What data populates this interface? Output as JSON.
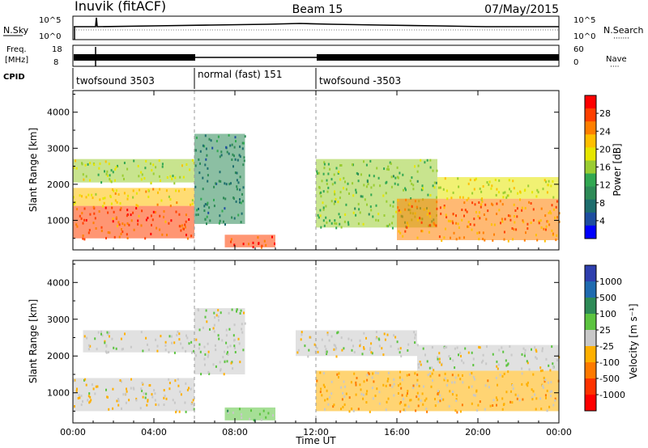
{
  "header": {
    "station": "Inuvik (fitACF)",
    "beam": "Beam 15",
    "date": "07/May/2015"
  },
  "nsky_panel": {
    "left_label": "N.Sky",
    "right_label": "N.Search",
    "right_dots": "·······",
    "left_ticks": [
      "10^5",
      "10^0"
    ],
    "right_ticks": [
      "10^5",
      "10^0"
    ]
  },
  "freq_panel": {
    "left_label_1": "Freq.",
    "left_label_2": "[MHz]",
    "right_label": "Nave",
    "right_dots": "····",
    "left_ticks": [
      "18",
      "8"
    ],
    "right_ticks": [
      "60",
      "0"
    ]
  },
  "cpid_panel": {
    "label": "CPID",
    "segments": [
      {
        "name": "twofsound 3503",
        "start_h": 0,
        "end_h": 6
      },
      {
        "name": "normal (fast) 151",
        "start_h": 6,
        "end_h": 12
      },
      {
        "name": "twofsound -3503",
        "start_h": 12,
        "end_h": 24
      }
    ]
  },
  "power_panel": {
    "ylabel": "Slant Range [km]",
    "colorbar_label": "Power [dB]",
    "colorbar_ticks": [
      "28",
      "24",
      "20",
      "16",
      "12",
      "8",
      "4"
    ],
    "colorbar_colors": [
      "#ff0000",
      "#ff4000",
      "#ff7f00",
      "#ffbf00",
      "#e6e600",
      "#9acd32",
      "#32a852",
      "#2e8b57",
      "#1e6e6e",
      "#1e4ea0",
      "#0000ff"
    ]
  },
  "velocity_panel": {
    "ylabel": "Slant Range [km]",
    "colorbar_label": "Velocity [m s⁻¹]",
    "colorbar_ticks": [
      "1000",
      "500",
      "100",
      "25",
      "-25",
      "-100",
      "-500",
      "-1000"
    ],
    "colorbar_colors": [
      "#2e3fae",
      "#1f6bb0",
      "#2e8b57",
      "#5cc440",
      "#c8c8c8",
      "#ffb000",
      "#ff7a00",
      "#ff3300",
      "#ff0000"
    ]
  },
  "x_axis": {
    "label": "Time UT",
    "ticks": [
      "00:00",
      "04:00",
      "08:00",
      "12:00",
      "16:00",
      "20:00",
      "00:00"
    ]
  },
  "y_axis": {
    "ticks": [
      "1000",
      "2000",
      "3000",
      "4000"
    ]
  },
  "chart_data": [
    {
      "type": "heatmap",
      "title": "Beam 15",
      "xlabel": "Time UT",
      "ylabel": "Slant Range [km]",
      "xlim": [
        0,
        24
      ],
      "ylim": [
        180,
        4600
      ],
      "colorbar": "Power [dB]",
      "clim": [
        0,
        30
      ],
      "regions": [
        {
          "t0": 0.0,
          "t1": 6.0,
          "r0": 500,
          "r1": 1400,
          "value": 26
        },
        {
          "t0": 0.0,
          "t1": 6.0,
          "r0": 1400,
          "r1": 1900,
          "value": 20
        },
        {
          "t0": 0.0,
          "t1": 6.0,
          "r0": 2050,
          "r1": 2700,
          "value": 16
        },
        {
          "t0": 6.0,
          "t1": 8.5,
          "r0": 900,
          "r1": 3400,
          "value": 8
        },
        {
          "t0": 7.5,
          "t1": 10.0,
          "r0": 250,
          "r1": 600,
          "value": 27
        },
        {
          "t0": 12.0,
          "t1": 18.0,
          "r0": 800,
          "r1": 2700,
          "value": 14
        },
        {
          "t0": 16.0,
          "t1": 24.0,
          "r0": 450,
          "r1": 1600,
          "value": 24
        },
        {
          "t0": 18.0,
          "t1": 24.0,
          "r0": 1600,
          "r1": 2200,
          "value": 18
        }
      ]
    },
    {
      "type": "heatmap",
      "title": "Beam 15",
      "xlabel": "Time UT",
      "ylabel": "Slant Range [km]",
      "xlim": [
        0,
        24
      ],
      "ylim": [
        180,
        4600
      ],
      "colorbar": "Velocity [m s⁻¹]",
      "clim": [
        -1000,
        1000
      ],
      "regions": [
        {
          "t0": 0.0,
          "t1": 6.0,
          "r0": 500,
          "r1": 1400,
          "value": -100
        },
        {
          "t0": 0.5,
          "t1": 6.0,
          "r0": 2100,
          "r1": 2700,
          "value": 0
        },
        {
          "t0": 6.0,
          "t1": 8.5,
          "r0": 1500,
          "r1": 3300,
          "value": 50
        },
        {
          "t0": 7.5,
          "t1": 10.0,
          "r0": 250,
          "r1": 600,
          "value": 200
        },
        {
          "t0": 11.0,
          "t1": 17.0,
          "r0": 2000,
          "r1": 2700,
          "value": 0
        },
        {
          "t0": 12.0,
          "t1": 24.0,
          "r0": 500,
          "r1": 1600,
          "value": -200
        },
        {
          "t0": 17.0,
          "t1": 24.0,
          "r0": 1600,
          "r1": 2300,
          "value": 0
        }
      ]
    }
  ]
}
